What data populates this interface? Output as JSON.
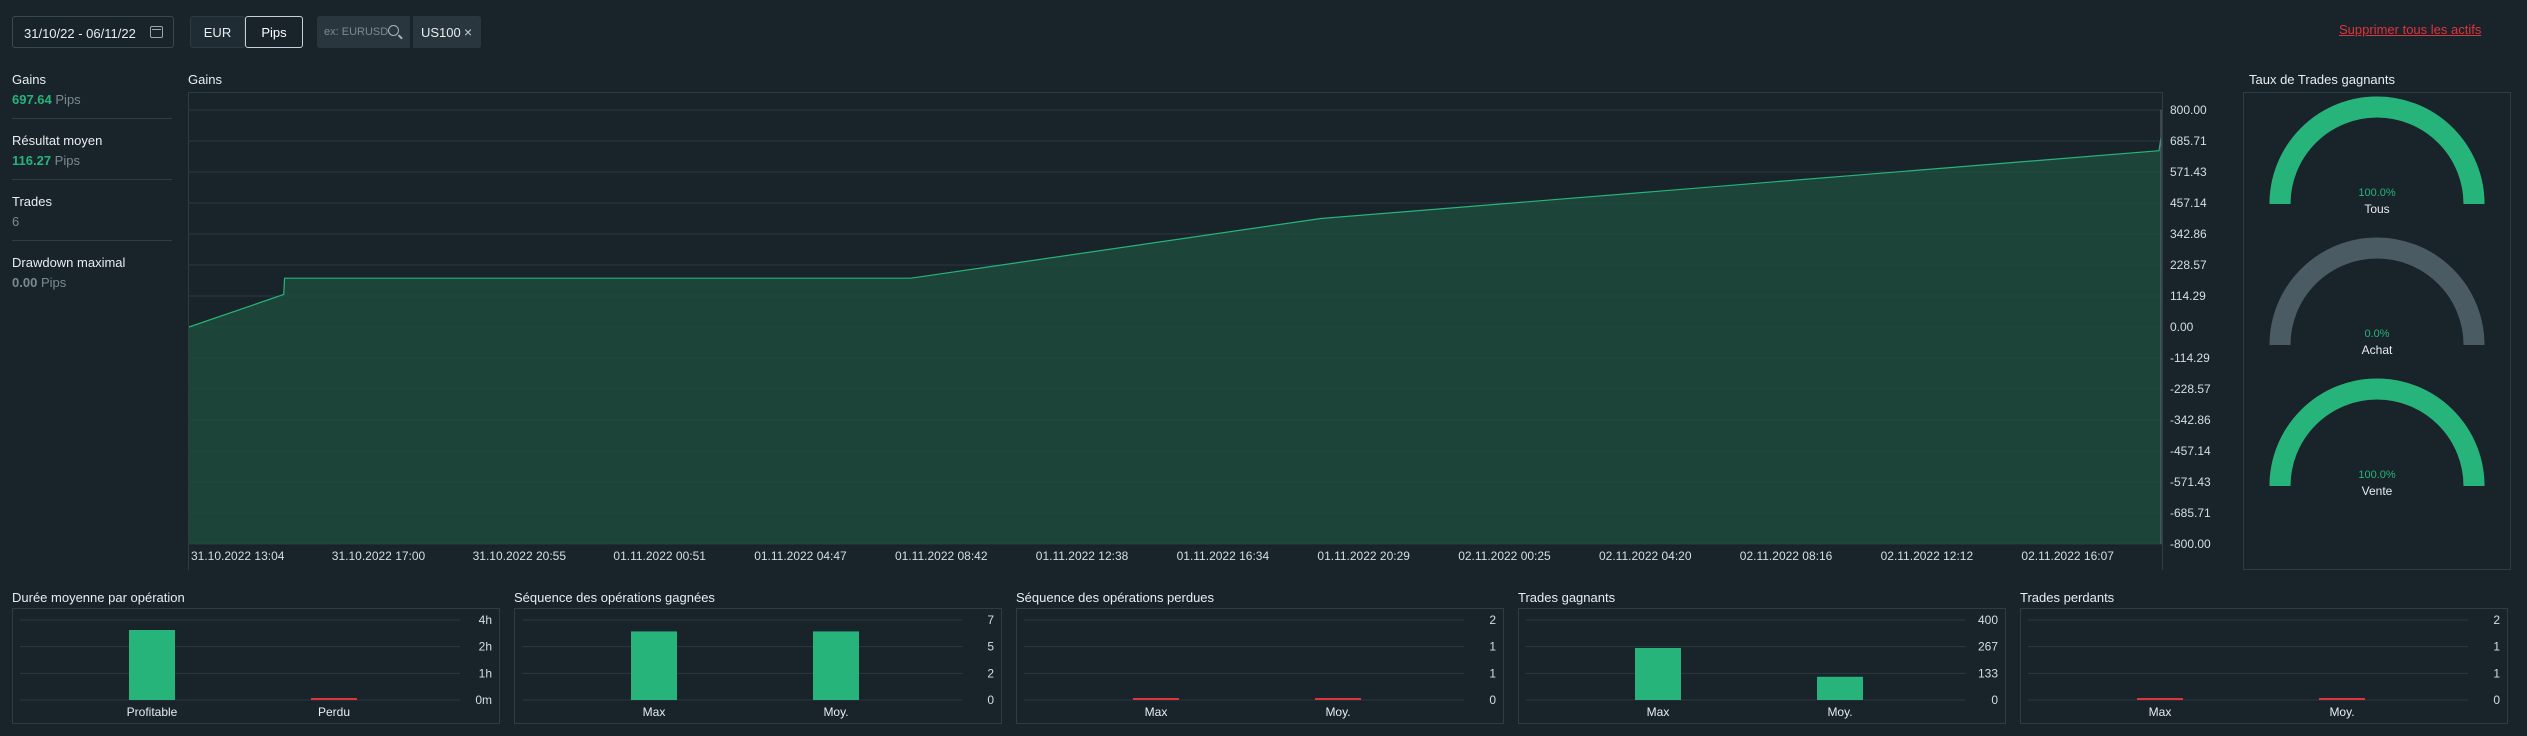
{
  "toolbar": {
    "date_range": "31/10/22 - 06/11/22",
    "unit_eur": "EUR",
    "unit_pips": "Pips",
    "search_placeholder": "ex: EURUSD",
    "asset_chip": "US100",
    "remove_all": "Supprimer tous les actifs"
  },
  "stats": [
    {
      "title": "Gains",
      "value": "697.64",
      "unit": "Pips",
      "value_color": "green"
    },
    {
      "title": "Résultat moyen",
      "value": "116.27",
      "unit": "Pips",
      "value_color": "green"
    },
    {
      "title": "Trades",
      "value": "6",
      "unit": "",
      "value_color": "plain"
    },
    {
      "title": "Drawdown maximal",
      "value": "0.00",
      "unit": "Pips",
      "value_color": "grey"
    }
  ],
  "gains_chart": {
    "title": "Gains",
    "chart_data": {
      "type": "area",
      "y_ticks": [
        "800.00",
        "685.71",
        "571.43",
        "457.14",
        "342.86",
        "228.57",
        "114.29",
        "0.00",
        "-114.29",
        "-228.57",
        "-342.86",
        "-457.14",
        "-571.43",
        "-685.71",
        "-800.00"
      ],
      "ylim": [
        -800,
        800
      ],
      "x_ticks": [
        "31.10.2022 13:04",
        "31.10.2022 17:00",
        "31.10.2022 20:55",
        "01.11.2022 00:51",
        "01.11.2022 04:47",
        "01.11.2022 08:42",
        "01.11.2022 12:38",
        "01.11.2022 16:34",
        "01.11.2022 20:29",
        "02.11.2022 00:25",
        "02.11.2022 04:20",
        "02.11.2022 08:16",
        "02.11.2022 12:12",
        "02.11.2022 16:07"
      ],
      "points": [
        {
          "t": 0,
          "y": 0
        },
        {
          "t": 0.048,
          "y": 120
        },
        {
          "t": 0.0485,
          "y": 180
        },
        {
          "t": 0.366,
          "y": 180
        },
        {
          "t": 0.574,
          "y": 400
        },
        {
          "t": 0.999,
          "y": 650
        },
        {
          "t": 1.0,
          "y": 697.64
        }
      ]
    }
  },
  "win_rate": {
    "title": "Taux de Trades gagnants",
    "gauges": [
      {
        "label": "Tous",
        "value": "100.0%",
        "fraction": 1.0
      },
      {
        "label": "Achat",
        "value": "0.0%",
        "fraction": 0.0
      },
      {
        "label": "Vente",
        "value": "100.0%",
        "fraction": 1.0
      }
    ]
  },
  "bar_charts": [
    {
      "title": "Durée moyenne par opération",
      "ticks": [
        "4h",
        "2h",
        "1h",
        "0m"
      ],
      "ymax": 4,
      "chart_data": {
        "type": "bar",
        "categories": [
          "Profitable",
          "Perdu"
        ],
        "values": [
          3.5,
          0.05
        ],
        "colors": [
          "#27b47a",
          "#e0333d"
        ]
      }
    },
    {
      "title": "Séquence des opérations gagnées",
      "ticks": [
        "7",
        "5",
        "2",
        "0"
      ],
      "ymax": 7,
      "chart_data": {
        "type": "bar",
        "categories": [
          "Max",
          "Moy."
        ],
        "values": [
          6,
          6
        ],
        "colors": [
          "#27b47a",
          "#27b47a"
        ]
      }
    },
    {
      "title": "Séquence des opérations perdues",
      "ticks": [
        "2",
        "1",
        "1",
        "0"
      ],
      "ymax": 2,
      "chart_data": {
        "type": "bar",
        "categories": [
          "Max",
          "Moy."
        ],
        "values": [
          0,
          0
        ],
        "colors": [
          "#e0333d",
          "#e0333d"
        ]
      }
    },
    {
      "title": "Trades gagnants",
      "ticks": [
        "400",
        "267",
        "133",
        "0"
      ],
      "ymax": 400,
      "chart_data": {
        "type": "bar",
        "categories": [
          "Max",
          "Moy."
        ],
        "values": [
          260,
          116.27
        ],
        "colors": [
          "#27b47a",
          "#27b47a"
        ]
      }
    },
    {
      "title": "Trades perdants",
      "ticks": [
        "2",
        "1",
        "1",
        "0"
      ],
      "ymax": 2,
      "chart_data": {
        "type": "bar",
        "categories": [
          "Max",
          "Moy."
        ],
        "values": [
          0,
          0
        ],
        "colors": [
          "#e0333d",
          "#e0333d"
        ]
      }
    }
  ],
  "colors": {
    "green": "#27b47a",
    "red": "#e0333d",
    "grey": "#4a5b64"
  }
}
